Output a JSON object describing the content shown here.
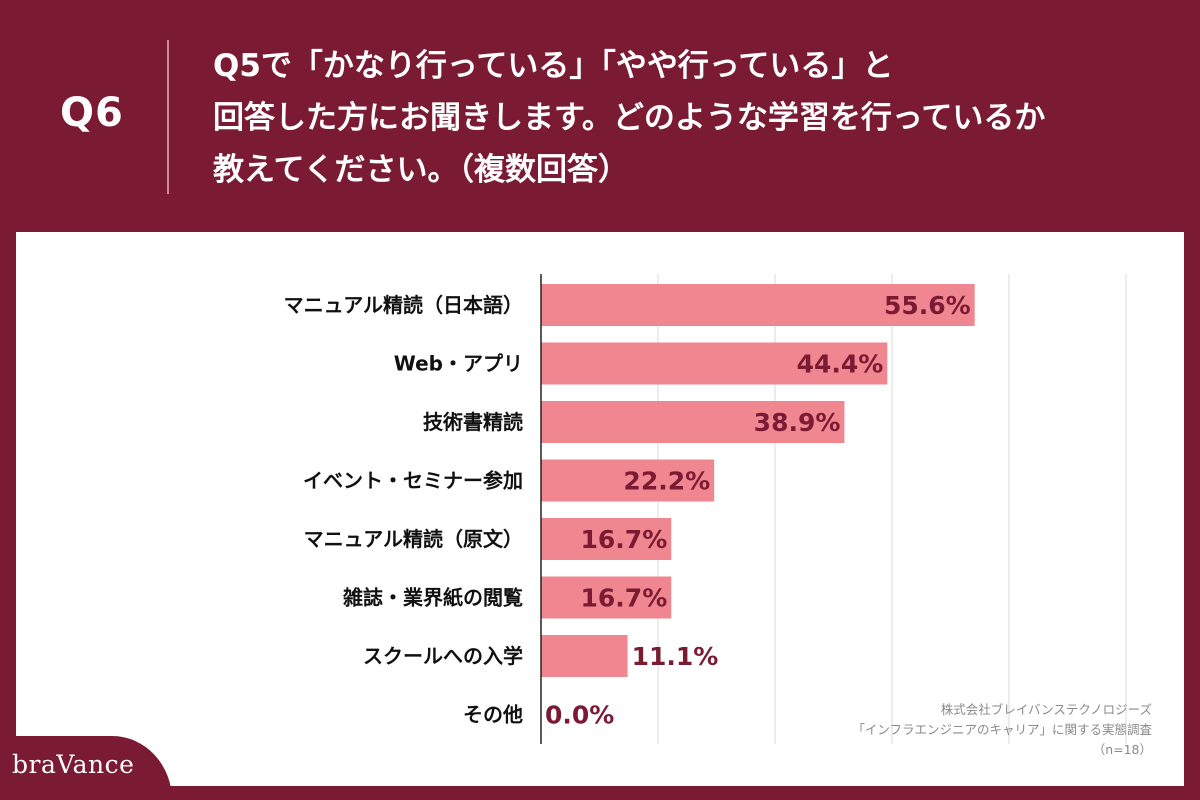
{
  "header": {
    "q_label": "Q6",
    "question_lines": [
      "Q5で「かなり行っている」「やや行っている」と",
      "回答した方にお聞きします。どのような学習を行っているか",
      "教えてください。（複数回答）"
    ]
  },
  "chart_data": {
    "type": "bar",
    "orientation": "horizontal",
    "categories": [
      "マニュアル精読（日本語）",
      "Web・アプリ",
      "技術書精読",
      "イベント・セミナー参加",
      "マニュアル精読（原文）",
      "雑誌・業界紙の閲覧",
      "スクールへの入学",
      "その他"
    ],
    "values": [
      55.6,
      44.4,
      38.9,
      22.2,
      16.7,
      16.7,
      11.1,
      0.0
    ],
    "value_labels": [
      "55.6%",
      "44.4%",
      "38.9%",
      "22.2%",
      "16.7%",
      "16.7%",
      "11.1%",
      "0.0%"
    ],
    "xlim": [
      0,
      100
    ],
    "grid": true,
    "bar_color": "#ef8690",
    "label_color": "#7a1a33"
  },
  "source": {
    "lines": [
      "株式会社ブレイバンステクノロジーズ",
      "「インフラエンジニアのキャリア」に関する実態調査",
      "（n=18）"
    ]
  },
  "brand": {
    "logo": "braVance"
  }
}
